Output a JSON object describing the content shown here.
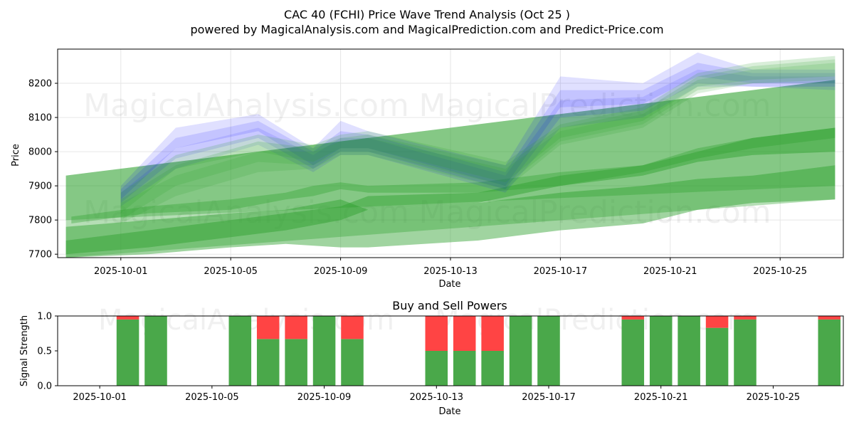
{
  "chart_data": [
    {
      "type": "area",
      "title": "CAC 40 (FCHI) Price Wave Trend Analysis (Oct 25 )",
      "subtitle": "powered by MagicalAnalysis.com and MagicalPrediction.com and Predict-Price.com",
      "xlabel": "Date",
      "ylabel": "Price",
      "ylim": [
        7690,
        8300
      ],
      "xlim_day": [
        -1.3,
        27.3
      ],
      "grid": true,
      "yticks": [
        7700,
        7800,
        7900,
        8000,
        8100,
        8200
      ],
      "xticks": [
        {
          "day": 1,
          "label": "2025-10-01"
        },
        {
          "day": 5,
          "label": "2025-10-05"
        },
        {
          "day": 9,
          "label": "2025-10-09"
        },
        {
          "day": 13,
          "label": "2025-10-13"
        },
        {
          "day": 17,
          "label": "2025-10-17"
        },
        {
          "day": 21,
          "label": "2025-10-21"
        },
        {
          "day": 25,
          "label": "2025-10-25"
        }
      ],
      "history_bands": [
        {
          "name": "blue-band-1",
          "color": "#0000ff",
          "opacity": 0.12,
          "x": [
            1,
            3,
            6,
            8,
            9,
            10,
            15,
            17,
            20,
            22,
            24,
            27
          ],
          "low": [
            7860,
            8010,
            8060,
            7960,
            8010,
            8010,
            7900,
            8130,
            8140,
            8220,
            8200,
            8200
          ],
          "high": [
            7900,
            8070,
            8110,
            8010,
            8090,
            8060,
            7960,
            8220,
            8200,
            8290,
            8240,
            8240
          ]
        },
        {
          "name": "blue-band-2",
          "color": "#0000ff",
          "opacity": 0.12,
          "x": [
            1,
            3,
            6,
            8,
            9,
            10,
            15,
            17,
            20,
            22,
            24,
            27
          ],
          "low": [
            7850,
            7980,
            8040,
            7950,
            8000,
            8000,
            7890,
            8100,
            8120,
            8200,
            8190,
            8190
          ],
          "high": [
            7890,
            8040,
            8090,
            8000,
            8060,
            8050,
            7940,
            8180,
            8180,
            8260,
            8230,
            8230
          ]
        },
        {
          "name": "blue-band-3",
          "color": "#0000ff",
          "opacity": 0.1,
          "x": [
            1,
            3,
            6,
            8,
            9,
            10,
            15,
            17,
            20,
            22,
            24,
            27
          ],
          "low": [
            7840,
            7950,
            8020,
            7940,
            7990,
            7990,
            7880,
            8070,
            8100,
            8190,
            8190,
            8180
          ],
          "high": [
            7880,
            8010,
            8070,
            7990,
            8040,
            8040,
            7930,
            8150,
            8160,
            8240,
            8220,
            8220
          ]
        },
        {
          "name": "green-band-1",
          "color": "#2ca02c",
          "opacity": 0.18,
          "x": [
            1,
            3,
            6,
            8,
            9,
            10,
            15,
            17,
            20,
            22,
            24,
            27
          ],
          "low": [
            7820,
            7950,
            8000,
            7970,
            8010,
            8010,
            7910,
            8040,
            8090,
            8190,
            8210,
            8220
          ],
          "high": [
            7880,
            7990,
            8050,
            8020,
            8050,
            8060,
            7970,
            8080,
            8130,
            8230,
            8260,
            8280
          ]
        },
        {
          "name": "green-band-2",
          "color": "#2ca02c",
          "opacity": 0.18,
          "x": [
            1,
            3,
            6,
            8,
            9,
            10,
            15,
            17,
            20,
            22,
            24,
            27
          ],
          "low": [
            7800,
            7900,
            7970,
            7960,
            8000,
            8000,
            7900,
            8030,
            8080,
            8180,
            8200,
            8210
          ],
          "high": [
            7860,
            7960,
            8030,
            8010,
            8040,
            8050,
            7960,
            8070,
            8120,
            8220,
            8250,
            8270
          ]
        },
        {
          "name": "green-band-3",
          "color": "#2ca02c",
          "opacity": 0.16,
          "x": [
            1,
            3,
            6,
            8,
            9,
            10,
            15,
            17,
            20,
            22,
            24,
            27
          ],
          "low": [
            7790,
            7870,
            7940,
            7950,
            7990,
            7990,
            7890,
            8020,
            8070,
            8170,
            8200,
            8200
          ],
          "high": [
            7850,
            7930,
            8000,
            8000,
            8030,
            8040,
            7950,
            8060,
            8110,
            8210,
            8240,
            8260
          ]
        }
      ],
      "prediction_bands": [
        {
          "name": "green-wide-1",
          "color": "#2ca02c",
          "opacity": 0.35,
          "x": [
            -1,
            27
          ],
          "low": [
            7690,
            7860
          ],
          "high": [
            7930,
            8210
          ]
        },
        {
          "name": "green-wide-2",
          "color": "#2ca02c",
          "opacity": 0.45,
          "x": [
            -1,
            2,
            5,
            7,
            9,
            10,
            14,
            17,
            20,
            22,
            24,
            27
          ],
          "low": [
            7690,
            7700,
            7720,
            7730,
            7720,
            7720,
            7740,
            7770,
            7790,
            7830,
            7850,
            7860
          ],
          "high": [
            7780,
            7800,
            7820,
            7830,
            7860,
            7830,
            7850,
            7880,
            7900,
            7920,
            7930,
            7960
          ]
        },
        {
          "name": "green-mid-1",
          "color": "#2ca02c",
          "opacity": 0.45,
          "x": [
            -1,
            2,
            5,
            7,
            9,
            10,
            14,
            17,
            20,
            22,
            24,
            27
          ],
          "low": [
            7700,
            7720,
            7750,
            7770,
            7800,
            7830,
            7850,
            7900,
            7930,
            7970,
            7990,
            8000
          ],
          "high": [
            7740,
            7770,
            7800,
            7820,
            7840,
            7870,
            7880,
            7930,
            7960,
            8000,
            8040,
            8070
          ]
        },
        {
          "name": "green-mid-2",
          "color": "#2ca02c",
          "opacity": 0.35,
          "x": [
            -0.8,
            2,
            5,
            7,
            8,
            9,
            10,
            14,
            17,
            20,
            22,
            24,
            27
          ],
          "low": [
            7790,
            7820,
            7830,
            7860,
            7870,
            7890,
            7880,
            7880,
            7900,
            7940,
            7980,
            8010,
            8040
          ],
          "high": [
            7810,
            7840,
            7860,
            7880,
            7900,
            7910,
            7900,
            7910,
            7940,
            7960,
            8010,
            8040,
            8070
          ]
        },
        {
          "name": "green-upper",
          "color": "#2ca02c",
          "opacity": 0.35,
          "x": [
            -1,
            27
          ],
          "low": [
            7800,
            7900
          ],
          "high": [
            7930,
            8210
          ]
        }
      ]
    },
    {
      "type": "bar",
      "title": "Buy and Sell Powers",
      "xlabel": "Date",
      "ylabel": "Signal Strength",
      "ylim": [
        0,
        1
      ],
      "xlim_day": [
        -0.5,
        27.5
      ],
      "yticks": [
        {
          "value": 0,
          "label": "0.0"
        },
        {
          "value": 0.5,
          "label": "0.5"
        },
        {
          "value": 1,
          "label": "1.0"
        }
      ],
      "xticks": [
        {
          "day": 1,
          "label": "2025-10-01"
        },
        {
          "day": 5,
          "label": "2025-10-05"
        },
        {
          "day": 9,
          "label": "2025-10-09"
        },
        {
          "day": 13,
          "label": "2025-10-13"
        },
        {
          "day": 17,
          "label": "2025-10-17"
        },
        {
          "day": 21,
          "label": "2025-10-21"
        },
        {
          "day": 25,
          "label": "2025-10-25"
        }
      ],
      "buy_color": "#4aa84a",
      "sell_color": "#ff4444",
      "bars": [
        {
          "day": 2,
          "buy": 0.95,
          "sell": 0.05
        },
        {
          "day": 3,
          "buy": 1.0,
          "sell": 0.0
        },
        {
          "day": 6,
          "buy": 1.0,
          "sell": 0.0
        },
        {
          "day": 7,
          "buy": 0.67,
          "sell": 0.33
        },
        {
          "day": 8,
          "buy": 0.67,
          "sell": 0.33
        },
        {
          "day": 9,
          "buy": 1.0,
          "sell": 0.0
        },
        {
          "day": 10,
          "buy": 0.67,
          "sell": 0.33
        },
        {
          "day": 13,
          "buy": 0.5,
          "sell": 0.5
        },
        {
          "day": 14,
          "buy": 0.5,
          "sell": 0.5
        },
        {
          "day": 15,
          "buy": 0.5,
          "sell": 0.5
        },
        {
          "day": 16,
          "buy": 1.0,
          "sell": 0.0
        },
        {
          "day": 17,
          "buy": 1.0,
          "sell": 0.0
        },
        {
          "day": 20,
          "buy": 0.95,
          "sell": 0.05
        },
        {
          "day": 21,
          "buy": 1.0,
          "sell": 0.0
        },
        {
          "day": 22,
          "buy": 1.0,
          "sell": 0.0
        },
        {
          "day": 23,
          "buy": 0.83,
          "sell": 0.17
        },
        {
          "day": 24,
          "buy": 0.95,
          "sell": 0.05
        },
        {
          "day": 27,
          "buy": 0.95,
          "sell": 0.05
        }
      ]
    }
  ],
  "watermarks": {
    "upper_left": "MagicalAnalysis.com",
    "upper_right": "MagicalPrediction.com",
    "lower_left": "MagicalAnalysis.com",
    "lower_right": "MagicalPrediction.com",
    "bottom_left": "MagicalAnalysis.com",
    "bottom_right": "MagicalPrediction.com"
  }
}
